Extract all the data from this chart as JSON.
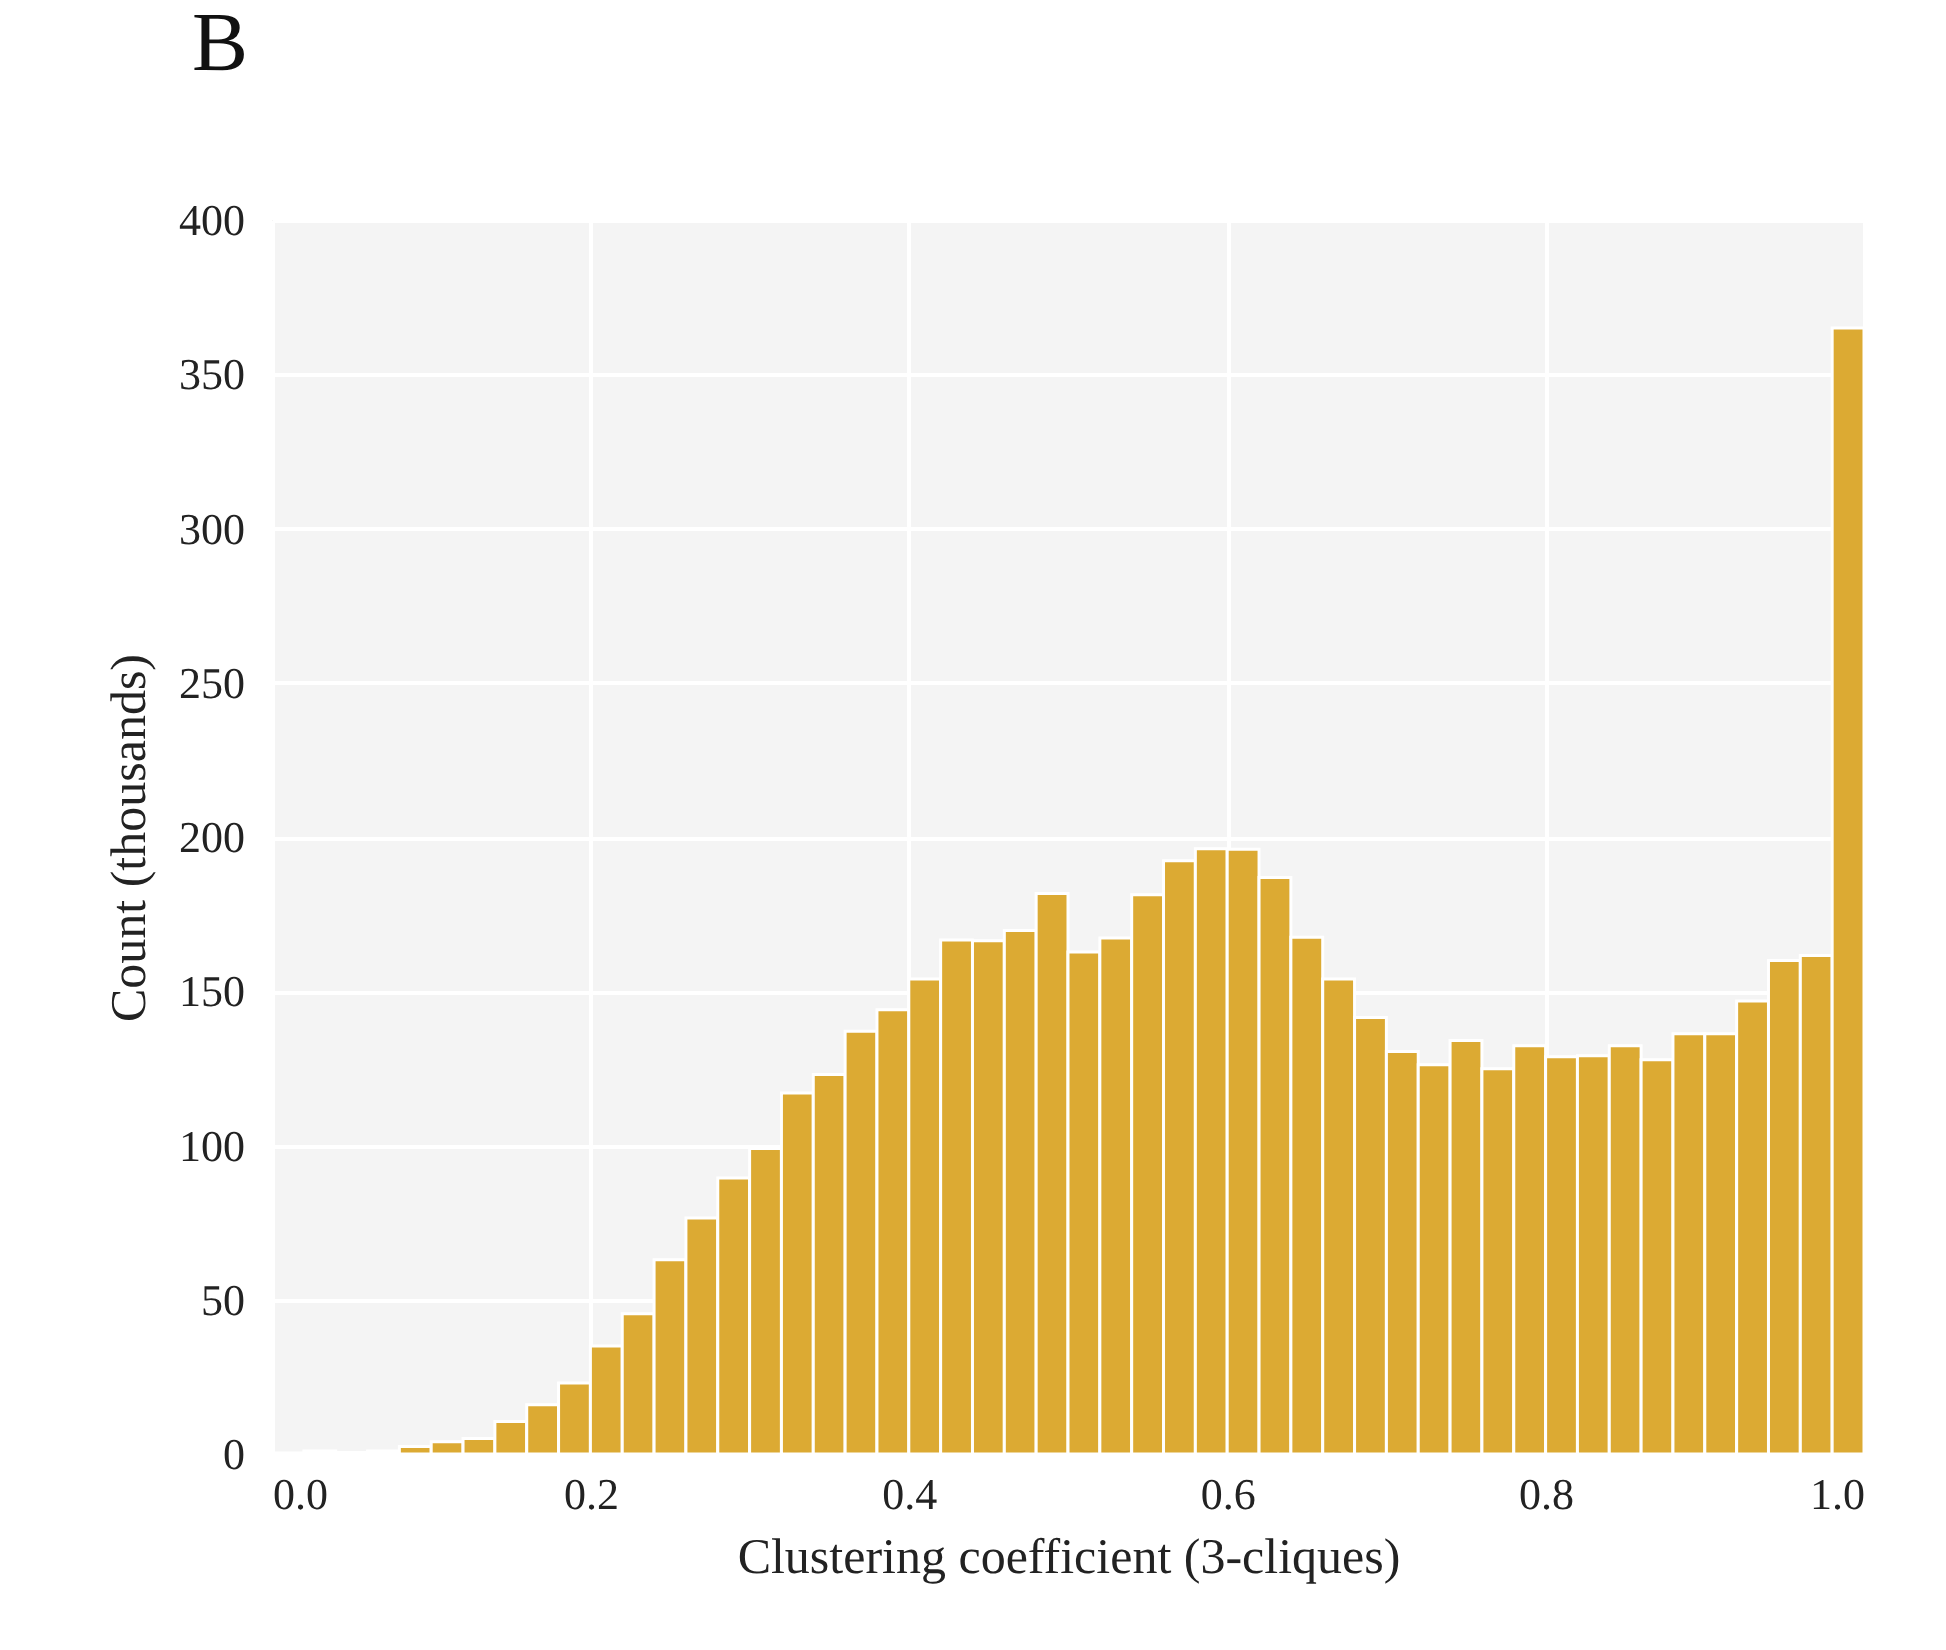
{
  "chart_data": {
    "type": "histogram",
    "title": "B",
    "xlabel": "Clustering coefficient (3-cliques)",
    "ylabel": "Count (thousands)",
    "color": "#dcaa33",
    "bins": [
      0,
      0.02,
      0.04,
      0.06,
      0.08,
      0.1,
      0.12,
      0.14,
      0.16,
      0.18,
      0.2,
      0.22,
      0.24,
      0.26,
      0.28,
      0.3,
      0.32,
      0.34,
      0.36,
      0.38,
      0.4,
      0.42,
      0.44,
      0.46,
      0.48,
      0.5,
      0.52,
      0.54,
      0.56,
      0.58,
      0.6,
      0.62,
      0.64,
      0.66,
      0.68,
      0.7,
      0.72,
      0.74,
      0.76,
      0.78,
      0.8,
      0.82,
      0.84,
      0.86,
      0.88,
      0.9,
      0.92,
      0.94,
      0.96,
      0.98,
      1
    ],
    "values": [
      0.3,
      1,
      0.5,
      1,
      2.4,
      4,
      5,
      10.5,
      16,
      23,
      35,
      45.5,
      63,
      76.5,
      89.5,
      99,
      117,
      123,
      137,
      144,
      154,
      166.6,
      166.4,
      169.7,
      181.7,
      162.7,
      167.3,
      181.3,
      192.3,
      196.2,
      196,
      186.9,
      167.5,
      154,
      141.5,
      130.5,
      126.2,
      134,
      124.9,
      132.3,
      128.8,
      129.1,
      132.3,
      127.8,
      136.2,
      136.2,
      146.8,
      160,
      161.6,
      365
    ],
    "xlim": [
      0,
      1
    ],
    "xticks": [
      {
        "value": 0,
        "label": "0.0"
      },
      {
        "value": 0.2,
        "label": "0.2"
      },
      {
        "value": 0.4,
        "label": "0.4"
      },
      {
        "value": 0.6,
        "label": "0.6"
      },
      {
        "value": 0.8,
        "label": "0.8"
      },
      {
        "value": 1,
        "label": "1.0"
      }
    ],
    "ylim": [
      0,
      400
    ],
    "yticks": [
      0,
      50,
      100,
      150,
      200,
      250,
      300,
      350,
      400
    ],
    "grid": true
  }
}
